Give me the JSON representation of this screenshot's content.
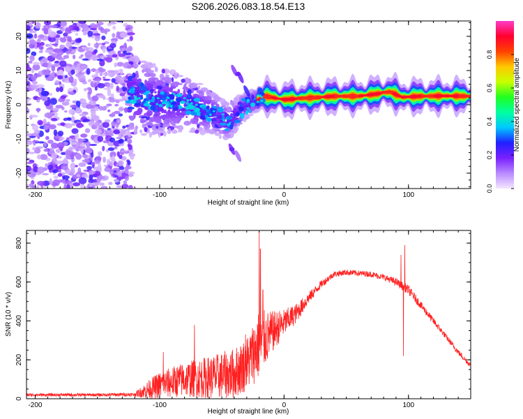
{
  "title": "S206.2026.083.18.54.E13",
  "chart_data": [
    {
      "type": "heatmap",
      "xlabel": "Height of straight line (km)",
      "ylabel": "Frequency (Hz)",
      "xlim": [
        -207,
        150
      ],
      "ylim": [
        -24.5,
        24.5
      ],
      "xticks": [
        -200,
        -100,
        0,
        100
      ],
      "yticks": [
        -20,
        -10,
        0,
        10,
        20
      ],
      "colorbar": {
        "label": "Normalized spectral amplitude",
        "range": [
          0,
          1
        ],
        "ticks": [
          "0.0",
          "0.2",
          "0.4",
          "0.6",
          "0.8"
        ],
        "tick_values": [
          0.0,
          0.2,
          0.4,
          0.6,
          0.8
        ],
        "colormap": [
          "#f4e6ff",
          "#b98aff",
          "#7a20ff",
          "#2020ff",
          "#00c8ff",
          "#00ffa0",
          "#20ff20",
          "#c8ff00",
          "#ffc800",
          "#ff4000",
          "#ff0030",
          "#ff3cc8"
        ]
      },
      "description_points": [
        {
          "x": -195,
          "y": 20,
          "value": 0.1
        },
        {
          "x": -180,
          "y": 8,
          "value": 0.2
        },
        {
          "x": -160,
          "y": -15,
          "value": 0.1
        },
        {
          "x": -130,
          "y": 3,
          "value": 0.15
        },
        {
          "x": -100,
          "y": 5,
          "value": 0.25
        },
        {
          "x": -80,
          "y": 1,
          "value": 0.2
        },
        {
          "x": -60,
          "y": -3,
          "value": 0.25
        },
        {
          "x": -42,
          "y": -13,
          "value": 0.2
        },
        {
          "x": -37,
          "y": 9,
          "value": 0.2
        },
        {
          "x": -20,
          "y": 3,
          "value": 0.5
        },
        {
          "x": 10,
          "y": 2,
          "value": 0.85
        },
        {
          "x": 50,
          "y": 2.5,
          "value": 0.85
        },
        {
          "x": 80,
          "y": 3.5,
          "value": 0.85
        },
        {
          "x": 115,
          "y": 2.5,
          "value": 0.85
        },
        {
          "x": 140,
          "y": 2.5,
          "value": 0.9
        }
      ],
      "ridge": {
        "x": [
          -125,
          -100,
          -80,
          -60,
          -45,
          -30,
          -15,
          0,
          20,
          40,
          60,
          75,
          85,
          95,
          110,
          130,
          150
        ],
        "y": [
          3,
          1,
          0.5,
          -2,
          -5,
          0,
          2.5,
          1.5,
          2,
          2.5,
          2.5,
          3.2,
          3.8,
          2.2,
          2.5,
          2.6,
          2.5
        ]
      }
    },
    {
      "type": "line",
      "xlabel": "Height of straight line (km)",
      "ylabel": "SNR (10 * v/v)",
      "xlim": [
        -207,
        150
      ],
      "ylim": [
        0,
        865
      ],
      "xticks": [
        -200,
        -100,
        0,
        100
      ],
      "yticks": [
        0,
        200,
        400,
        600,
        800
      ],
      "color": "#ff2020",
      "envelope_x": [
        -207,
        -150,
        -120,
        -110,
        -100,
        -80,
        -60,
        -40,
        -30,
        -20,
        -10,
        0,
        10,
        20,
        30,
        40,
        50,
        60,
        70,
        80,
        90,
        100,
        110,
        120,
        130,
        140,
        150
      ],
      "envelope_y": [
        20,
        20,
        22,
        45,
        70,
        100,
        110,
        130,
        180,
        280,
        340,
        390,
        440,
        520,
        590,
        640,
        650,
        645,
        640,
        625,
        600,
        560,
        480,
        400,
        320,
        240,
        170
      ],
      "noise_amp": [
        8,
        8,
        10,
        45,
        70,
        90,
        110,
        130,
        140,
        180,
        110,
        70,
        50,
        30,
        20,
        15,
        15,
        15,
        15,
        15,
        20,
        25,
        20,
        18,
        15,
        15,
        12
      ],
      "spikes": [
        {
          "x": -97,
          "y": 240
        },
        {
          "x": -72,
          "y": 380
        },
        {
          "x": -31,
          "y": 330
        },
        {
          "x": -20,
          "y": 860
        },
        {
          "x": -19,
          "y": 770
        },
        {
          "x": -17,
          "y": 560
        },
        {
          "x": 94,
          "y": 740
        },
        {
          "x": 96,
          "y": 220
        },
        {
          "x": 97,
          "y": 790
        }
      ]
    }
  ]
}
